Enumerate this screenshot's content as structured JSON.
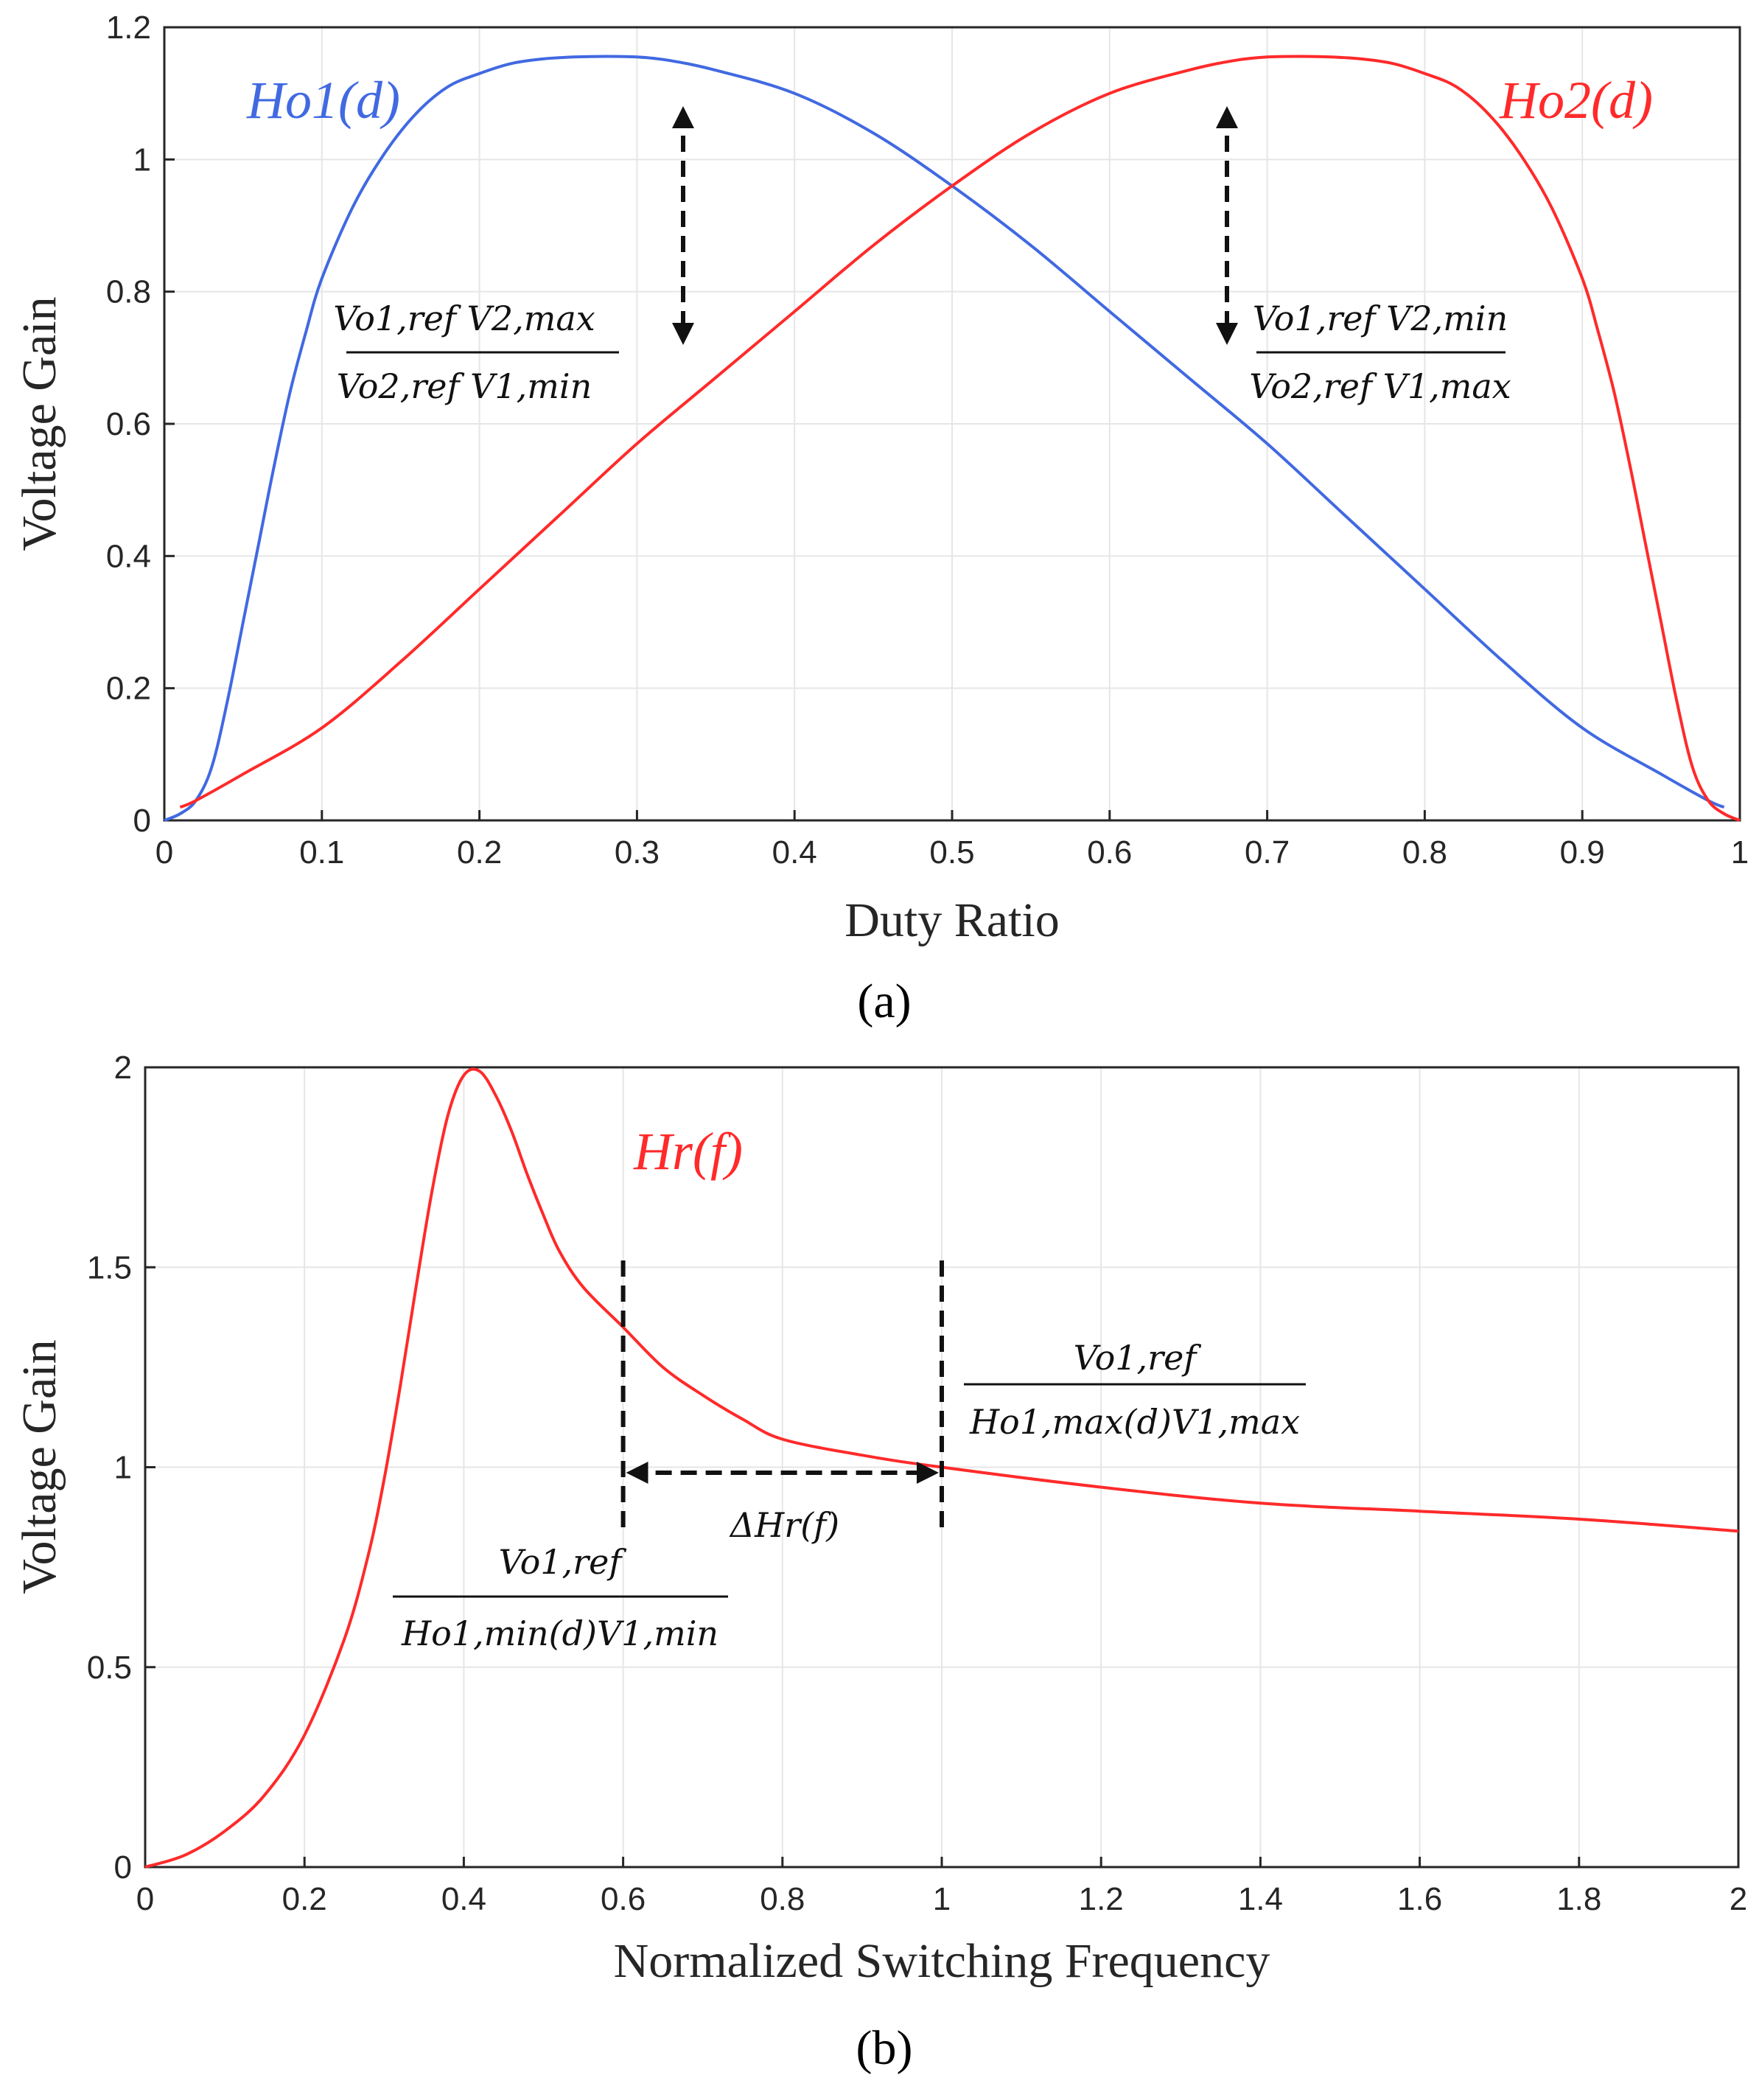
{
  "colors": {
    "blue": "#4169E1",
    "red": "#FF2A2A",
    "axis": "#262626",
    "grid": "#e6e6e6",
    "annotation": "#111111"
  },
  "panel_a": {
    "label": "(a)",
    "curve_labels": {
      "ho1": "Ho1(d)",
      "ho2": "Ho2(d)"
    },
    "annotation_left": {
      "numerator": "Vo1,ref V2,max",
      "denominator": "Vo2,ref V1,min"
    },
    "annotation_right": {
      "numerator": "Vo1,ref V2,min",
      "denominator": "Vo2,ref V1,max"
    }
  },
  "panel_b": {
    "label": "(b)",
    "curve_label": "Hr(f)",
    "annotation_delta": "ΔHr(f)",
    "annotation_right": {
      "numerator": "Vo1,ref",
      "denominator": "Ho1,max(d)V1,max"
    },
    "annotation_left": {
      "numerator": "Vo1,ref",
      "denominator": "Ho1,min(d)V1,min"
    }
  },
  "chart_data": [
    {
      "type": "line",
      "title": "",
      "xlabel": "Duty Ratio",
      "ylabel": "Voltage Gain",
      "xlim": [
        0,
        1
      ],
      "ylim": [
        0,
        1.2
      ],
      "xticks": [
        0,
        0.1,
        0.2,
        0.3,
        0.4,
        0.5,
        0.6,
        0.7,
        0.8,
        0.9,
        1
      ],
      "xtick_labels": [
        "0",
        "0.1",
        "0.2",
        "0.3",
        "0.4",
        "0.5",
        "0.6",
        "0.7",
        "0.8",
        "0.9",
        "1"
      ],
      "yticks": [
        0,
        0.2,
        0.4,
        0.6,
        0.8,
        1,
        1.2
      ],
      "ytick_labels": [
        "0",
        "0.2",
        "0.4",
        "0.6",
        "0.8",
        "1",
        "1.2"
      ],
      "grid": true,
      "series": [
        {
          "name": "Ho1(d)",
          "color": "#4169E1",
          "x": [
            0.0,
            0.01,
            0.02,
            0.03,
            0.04,
            0.05,
            0.06,
            0.07,
            0.08,
            0.09,
            0.1,
            0.12,
            0.14,
            0.16,
            0.18,
            0.2,
            0.22,
            0.24,
            0.26,
            0.28,
            0.3,
            0.32,
            0.35,
            0.4,
            0.45,
            0.5,
            0.55,
            0.6,
            0.65,
            0.7,
            0.75,
            0.8,
            0.85,
            0.9,
            0.95,
            0.98,
            0.99
          ],
          "y": [
            0.0,
            0.01,
            0.03,
            0.08,
            0.18,
            0.3,
            0.42,
            0.54,
            0.65,
            0.74,
            0.82,
            0.93,
            1.01,
            1.07,
            1.11,
            1.13,
            1.145,
            1.152,
            1.155,
            1.156,
            1.155,
            1.15,
            1.135,
            1.1,
            1.04,
            0.96,
            0.87,
            0.77,
            0.67,
            0.57,
            0.46,
            0.35,
            0.24,
            0.14,
            0.07,
            0.03,
            0.02
          ]
        },
        {
          "name": "Ho2(d)",
          "color": "#FF2A2A",
          "x": [
            0.01,
            0.02,
            0.05,
            0.1,
            0.15,
            0.2,
            0.25,
            0.3,
            0.35,
            0.4,
            0.45,
            0.5,
            0.55,
            0.6,
            0.65,
            0.68,
            0.7,
            0.72,
            0.74,
            0.76,
            0.78,
            0.8,
            0.82,
            0.84,
            0.86,
            0.88,
            0.9,
            0.91,
            0.92,
            0.93,
            0.94,
            0.95,
            0.96,
            0.97,
            0.98,
            0.99,
            1.0
          ],
          "y": [
            0.02,
            0.03,
            0.07,
            0.14,
            0.24,
            0.35,
            0.46,
            0.57,
            0.67,
            0.77,
            0.87,
            0.96,
            1.04,
            1.1,
            1.135,
            1.15,
            1.155,
            1.156,
            1.155,
            1.152,
            1.145,
            1.13,
            1.11,
            1.07,
            1.01,
            0.93,
            0.82,
            0.74,
            0.65,
            0.54,
            0.42,
            0.3,
            0.18,
            0.08,
            0.03,
            0.01,
            0.0
          ]
        }
      ]
    },
    {
      "type": "line",
      "title": "",
      "xlabel": "Normalized Switching Frequency",
      "ylabel": "Voltage Gain",
      "xlim": [
        0,
        2
      ],
      "ylim": [
        0,
        2
      ],
      "xticks": [
        0,
        0.2,
        0.4,
        0.6,
        0.8,
        1,
        1.2,
        1.4,
        1.6,
        1.8,
        2
      ],
      "xtick_labels": [
        "0",
        "0.2",
        "0.4",
        "0.6",
        "0.8",
        "1",
        "1.2",
        "1.4",
        "1.6",
        "1.8",
        "2"
      ],
      "yticks": [
        0,
        0.5,
        1,
        1.5,
        2
      ],
      "ytick_labels": [
        "0",
        "0.5",
        "1",
        "1.5",
        "2"
      ],
      "grid": true,
      "series": [
        {
          "name": "Hr(f)",
          "color": "#FF2A2A",
          "x": [
            0.0,
            0.05,
            0.1,
            0.15,
            0.2,
            0.25,
            0.28,
            0.3,
            0.32,
            0.34,
            0.36,
            0.38,
            0.4,
            0.42,
            0.44,
            0.46,
            0.48,
            0.5,
            0.52,
            0.55,
            0.6,
            0.65,
            0.7,
            0.75,
            0.8,
            0.9,
            1.0,
            1.2,
            1.4,
            1.6,
            1.8,
            2.0
          ],
          "y": [
            0.0,
            0.03,
            0.09,
            0.18,
            0.33,
            0.57,
            0.78,
            0.97,
            1.2,
            1.45,
            1.69,
            1.88,
            1.98,
            1.99,
            1.93,
            1.84,
            1.73,
            1.63,
            1.54,
            1.45,
            1.35,
            1.25,
            1.18,
            1.12,
            1.07,
            1.03,
            1.0,
            0.95,
            0.91,
            0.89,
            0.87,
            0.84
          ]
        }
      ],
      "markers": {
        "vertical_dashed_at": [
          0.6,
          1.0
        ],
        "delta_arrow": [
          0.6,
          1.0
        ]
      }
    }
  ]
}
